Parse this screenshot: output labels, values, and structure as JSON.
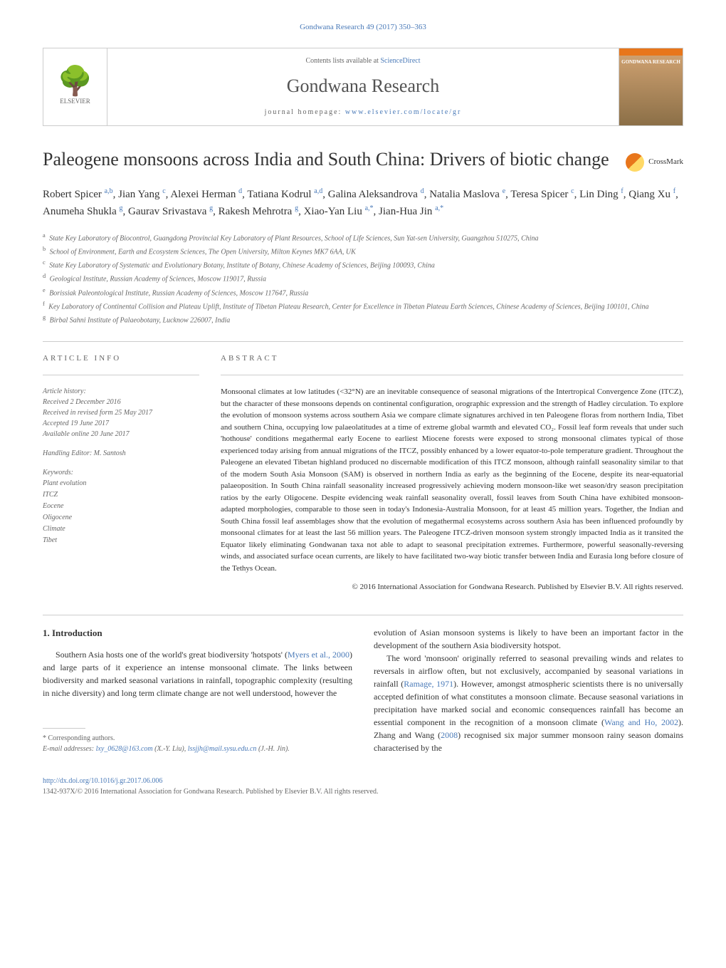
{
  "journal_ref": "Gondwana Research 49 (2017) 350–363",
  "header": {
    "elsevier": "ELSEVIER",
    "contents_prefix": "Contents lists available at ",
    "sciencedirect": "ScienceDirect",
    "journal_name": "Gondwana Research",
    "homepage_prefix": "journal homepage: ",
    "homepage_url": "www.elsevier.com/locate/gr",
    "cover_title": "GONDWANA RESEARCH"
  },
  "crossmark": "CrossMark",
  "title": "Paleogene monsoons across India and South China: Drivers of biotic change",
  "authors_html": "Robert Spicer <sup>a,b</sup>, Jian Yang <sup>c</sup>, Alexei Herman <sup>d</sup>, Tatiana Kodrul <sup>a,d</sup>, Galina Aleksandrova <sup>d</sup>, Natalia Maslova <sup>e</sup>, Teresa Spicer <sup>c</sup>, Lin Ding <sup>f</sup>, Qiang Xu <sup>f</sup>, Anumeha Shukla <sup>g</sup>, Gaurav Srivastava <sup>g</sup>, Rakesh Mehrotra <sup>g</sup>, Xiao-Yan Liu <sup>a,*</sup>, Jian-Hua Jin <sup>a,*</sup>",
  "affiliations": [
    {
      "key": "a",
      "text": "State Key Laboratory of Biocontrol, Guangdong Provincial Key Laboratory of Plant Resources, School of Life Sciences, Sun Yat-sen University, Guangzhou 510275, China"
    },
    {
      "key": "b",
      "text": "School of Environment, Earth and Ecosystem Sciences, The Open University, Milton Keynes MK7 6AA, UK"
    },
    {
      "key": "c",
      "text": "State Key Laboratory of Systematic and Evolutionary Botany, Institute of Botany, Chinese Academy of Sciences, Beijing 100093, China"
    },
    {
      "key": "d",
      "text": "Geological Institute, Russian Academy of Sciences, Moscow 119017, Russia"
    },
    {
      "key": "e",
      "text": "Borissiak Paleontological Institute, Russian Academy of Sciences, Moscow 117647, Russia"
    },
    {
      "key": "f",
      "text": "Key Laboratory of Continental Collision and Plateau Uplift, Institute of Tibetan Plateau Research, Center for Excellence in Tibetan Plateau Earth Sciences, Chinese Academy of Sciences, Beijing 100101, China"
    },
    {
      "key": "g",
      "text": "Birbal Sahni Institute of Palaeobotany, Lucknow 226007, India"
    }
  ],
  "article_info": {
    "heading": "ARTICLE INFO",
    "history_label": "Article history:",
    "history": [
      "Received 2 December 2016",
      "Received in revised form 25 May 2017",
      "Accepted 19 June 2017",
      "Available online 20 June 2017"
    ],
    "editor": "Handling Editor: M. Santosh",
    "keywords_label": "Keywords:",
    "keywords": [
      "Plant evolution",
      "ITCZ",
      "Eocene",
      "Oligocene",
      "Climate",
      "Tibet"
    ]
  },
  "abstract": {
    "heading": "ABSTRACT",
    "text": "Monsoonal climates at low latitudes (<32°N) are an inevitable consequence of seasonal migrations of the Intertropical Convergence Zone (ITCZ), but the character of these monsoons depends on continental configuration, orographic expression and the strength of Hadley circulation. To explore the evolution of monsoon systems across southern Asia we compare climate signatures archived in ten Paleogene floras from northern India, Tibet and southern China, occupying low palaeolatitudes at a time of extreme global warmth and elevated CO₂. Fossil leaf form reveals that under such 'hothouse' conditions megathermal early Eocene to earliest Miocene forests were exposed to strong monsoonal climates typical of those experienced today arising from annual migrations of the ITCZ, possibly enhanced by a lower equator-to-pole temperature gradient. Throughout the Paleogene an elevated Tibetan highland produced no discernable modification of this ITCZ monsoon, although rainfall seasonality similar to that of the modern South Asia Monsoon (SAM) is observed in northern India as early as the beginning of the Eocene, despite its near-equatorial palaeoposition. In South China rainfall seasonality increased progressively achieving modern monsoon-like wet season/dry season precipitation ratios by the early Oligocene. Despite evidencing weak rainfall seasonality overall, fossil leaves from South China have exhibited monsoon-adapted morphologies, comparable to those seen in today's Indonesia-Australia Monsoon, for at least 45 million years. Together, the Indian and South China fossil leaf assemblages show that the evolution of megathermal ecosystems across southern Asia has been influenced profoundly by monsoonal climates for at least the last 56 million years. The Paleogene ITCZ-driven monsoon system strongly impacted India as it transited the Equator likely eliminating Gondwanan taxa not able to adapt to seasonal precipitation extremes. Furthermore, powerful seasonally-reversing winds, and associated surface ocean currents, are likely to have facilitated two-way biotic transfer between India and Eurasia long before closure of the Tethys Ocean.",
    "copyright": "© 2016 International Association for Gondwana Research. Published by Elsevier B.V. All rights reserved."
  },
  "section_1_heading": "1. Introduction",
  "body": {
    "left_p1": "Southern Asia hosts one of the world's great biodiversity 'hotspots' (Myers et al., 2000) and large parts of it experience an intense monsoonal climate. The links between biodiversity and marked seasonal variations in rainfall, topographic complexity (resulting in niche diversity) and long term climate change are not well understood, however the",
    "right_p1": "evolution of Asian monsoon systems is likely to have been an important factor in the development of the southern Asia biodiversity hotspot.",
    "right_p2": "The word 'monsoon' originally referred to seasonal prevailing winds and relates to reversals in airflow often, but not exclusively, accompanied by seasonal variations in rainfall (Ramage, 1971). However, amongst atmospheric scientists there is no universally accepted definition of what constitutes a monsoon climate. Because seasonal variations in precipitation have marked social and economic consequences rainfall has become an essential component in the recognition of a monsoon climate (Wang and Ho, 2002). Zhang and Wang (2008) recognised six major summer monsoon rainy season domains characterised by the"
  },
  "footnote": {
    "corresponding": "* Corresponding authors.",
    "email_label": "E-mail addresses:",
    "email1": "lxy_0628@163.com",
    "email1_who": "(X.-Y. Liu),",
    "email2": "lssjjh@mail.sysu.edu.cn",
    "email2_who": "(J.-H. Jin)."
  },
  "footer": {
    "doi": "http://dx.doi.org/10.1016/j.gr.2017.06.006",
    "issn_line": "1342-937X/© 2016 International Association for Gondwana Research. Published by Elsevier B.V. All rights reserved."
  },
  "colors": {
    "link": "#4a7ab8",
    "elsevier_orange": "#e8761b",
    "text": "#333333",
    "muted": "#666666",
    "border": "#cccccc"
  }
}
